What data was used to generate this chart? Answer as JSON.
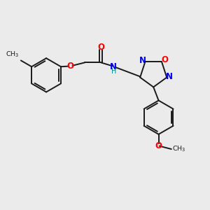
{
  "bg_color": "#ebebeb",
  "bond_color": "#1a1a1a",
  "bond_width": 1.4,
  "atom_colors": {
    "O": "#ff0000",
    "N": "#0000ee",
    "NH": "#008888",
    "C": "#1a1a1a"
  },
  "font_size_atom": 8.5,
  "fig_width": 3.0,
  "fig_height": 3.0,
  "dpi": 100
}
